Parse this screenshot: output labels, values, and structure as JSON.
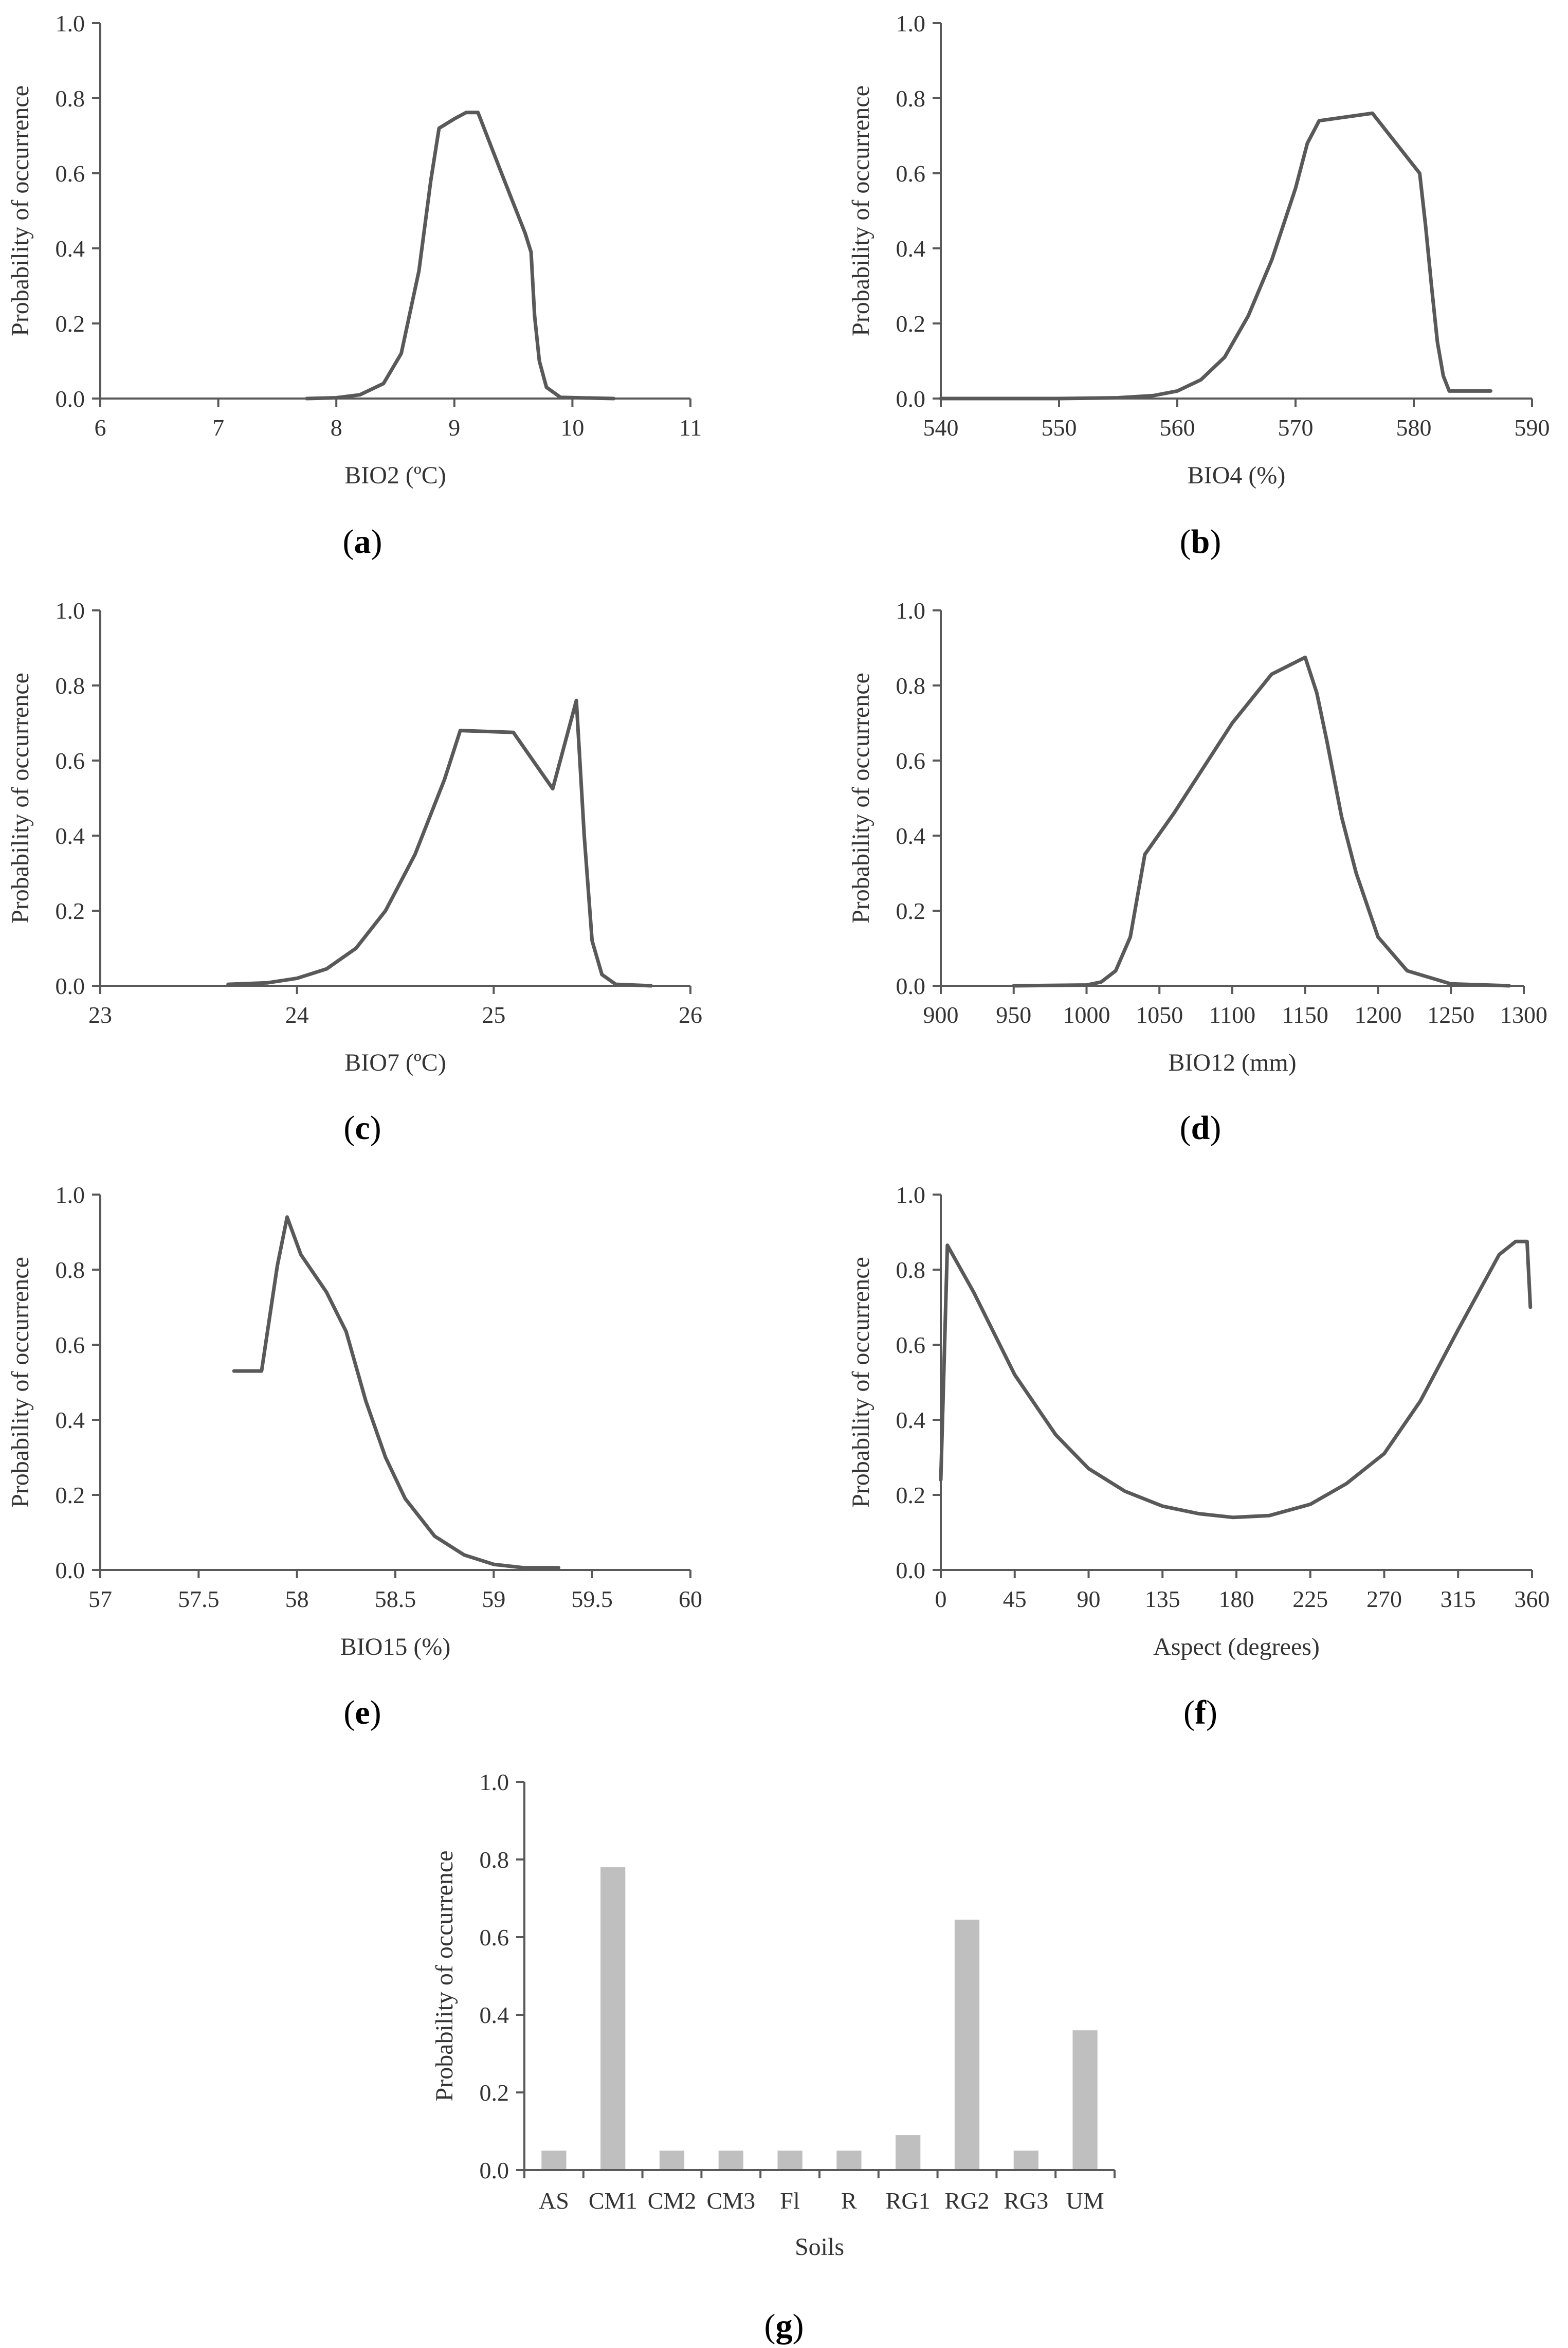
{
  "colors": {
    "axis": "#595959",
    "line": "#595959",
    "bar": "#bfbfbf",
    "text": "#333333"
  },
  "chart_data": [
    {
      "id": "a",
      "type": "line",
      "panel_label": "a",
      "xlabel": "BIO2 (ºC)",
      "ylabel": "Probability of occurrence",
      "xlim": [
        6,
        11
      ],
      "ylim": [
        0,
        1
      ],
      "x_ticks": [
        6,
        7,
        8,
        9,
        10,
        11
      ],
      "x_tick_labels": [
        "6",
        "7",
        "8",
        "9",
        "10",
        "11"
      ],
      "y_ticks": [
        0,
        0.2,
        0.4,
        0.6,
        0.8,
        1.0
      ],
      "y_tick_labels": [
        "0.0",
        "0.2",
        "0.4",
        "0.6",
        "0.8",
        "1.0"
      ],
      "x": [
        7.75,
        8.0,
        8.2,
        8.4,
        8.55,
        8.7,
        8.8,
        8.87,
        9.0,
        9.1,
        9.2,
        9.4,
        9.6,
        9.65,
        9.68,
        9.72,
        9.78,
        9.9,
        10.35
      ],
      "y": [
        0.0,
        0.002,
        0.01,
        0.04,
        0.12,
        0.34,
        0.58,
        0.72,
        0.745,
        0.762,
        0.762,
        0.6,
        0.44,
        0.39,
        0.22,
        0.1,
        0.03,
        0.003,
        0.0
      ]
    },
    {
      "id": "b",
      "type": "line",
      "panel_label": "b",
      "xlabel": "BIO4 (%)",
      "ylabel": "Probability of occurrence",
      "xlim": [
        540,
        590
      ],
      "ylim": [
        0,
        1
      ],
      "x_ticks": [
        540,
        550,
        560,
        570,
        580,
        590
      ],
      "x_tick_labels": [
        "540",
        "550",
        "560",
        "570",
        "580",
        "590"
      ],
      "y_ticks": [
        0,
        0.2,
        0.4,
        0.6,
        0.8,
        1.0
      ],
      "y_tick_labels": [
        "0.0",
        "0.2",
        "0.4",
        "0.6",
        "0.8",
        "1.0"
      ],
      "x": [
        540,
        550,
        555,
        558,
        560,
        562,
        564,
        566,
        568,
        570,
        571,
        572,
        576.5,
        580.5,
        581,
        581.5,
        582,
        582.5,
        583,
        586.5
      ],
      "y": [
        0.0,
        0.0,
        0.002,
        0.008,
        0.02,
        0.05,
        0.11,
        0.22,
        0.37,
        0.56,
        0.68,
        0.74,
        0.76,
        0.6,
        0.46,
        0.3,
        0.15,
        0.06,
        0.02,
        0.02
      ]
    },
    {
      "id": "c",
      "type": "line",
      "panel_label": "c",
      "xlabel": "BIO7 (ºC)",
      "ylabel": "Probability of occurrence",
      "xlim": [
        23,
        26
      ],
      "ylim": [
        0,
        1
      ],
      "x_ticks": [
        23,
        24,
        25,
        26
      ],
      "x_tick_labels": [
        "23",
        "24",
        "25",
        "26"
      ],
      "y_ticks": [
        0,
        0.2,
        0.4,
        0.6,
        0.8,
        1.0
      ],
      "y_tick_labels": [
        "0.0",
        "0.2",
        "0.4",
        "0.6",
        "0.8",
        "1.0"
      ],
      "x": [
        23.65,
        23.85,
        24.0,
        24.15,
        24.3,
        24.45,
        24.6,
        24.75,
        24.83,
        25.1,
        25.3,
        25.42,
        25.46,
        25.5,
        25.55,
        25.62,
        25.8
      ],
      "y": [
        0.004,
        0.008,
        0.02,
        0.045,
        0.1,
        0.2,
        0.35,
        0.55,
        0.68,
        0.675,
        0.525,
        0.76,
        0.4,
        0.12,
        0.03,
        0.004,
        0.0
      ]
    },
    {
      "id": "d",
      "type": "line",
      "panel_label": "d",
      "xlabel": "BIO12 (mm)",
      "ylabel": "Probability of occurrence",
      "xlim": [
        900,
        1300
      ],
      "ylim": [
        0,
        1
      ],
      "x_ticks": [
        900,
        950,
        1000,
        1050,
        1100,
        1150,
        1200,
        1250,
        1300
      ],
      "x_tick_labels": [
        "900",
        "950",
        "1000",
        "1050",
        "1100",
        "1150",
        "1200",
        "1250",
        "1300"
      ],
      "y_ticks": [
        0,
        0.2,
        0.4,
        0.6,
        0.8,
        1.0
      ],
      "y_tick_labels": [
        "0.0",
        "0.2",
        "0.4",
        "0.6",
        "0.8",
        "1.0"
      ],
      "x": [
        950,
        1000,
        1010,
        1020,
        1030,
        1040,
        1060,
        1080,
        1100,
        1127,
        1150,
        1158,
        1165,
        1175,
        1185,
        1200,
        1220,
        1250,
        1290
      ],
      "y": [
        0.0,
        0.002,
        0.01,
        0.04,
        0.13,
        0.35,
        0.46,
        0.58,
        0.7,
        0.83,
        0.875,
        0.78,
        0.65,
        0.45,
        0.3,
        0.13,
        0.04,
        0.005,
        0.0
      ]
    },
    {
      "id": "e",
      "type": "line",
      "panel_label": "e",
      "xlabel": "BIO15 (%)",
      "ylabel": "Probability of occurrence",
      "xlim": [
        57,
        60
      ],
      "ylim": [
        0,
        1
      ],
      "x_ticks": [
        57,
        57.5,
        58,
        58.5,
        59,
        59.5,
        60
      ],
      "x_tick_labels": [
        "57",
        "57.5",
        "58",
        "58.5",
        "59",
        "59.5",
        "60"
      ],
      "y_ticks": [
        0,
        0.2,
        0.4,
        0.6,
        0.8,
        1.0
      ],
      "y_tick_labels": [
        "0.0",
        "0.2",
        "0.4",
        "0.6",
        "0.8",
        "1.0"
      ],
      "x": [
        57.68,
        57.82,
        57.9,
        57.95,
        58.02,
        58.15,
        58.25,
        58.35,
        58.45,
        58.55,
        58.7,
        58.85,
        59.0,
        59.15,
        59.33
      ],
      "y": [
        0.53,
        0.53,
        0.81,
        0.94,
        0.84,
        0.74,
        0.635,
        0.45,
        0.3,
        0.19,
        0.09,
        0.04,
        0.015,
        0.006,
        0.006
      ]
    },
    {
      "id": "f",
      "type": "line",
      "panel_label": "f",
      "xlabel": "Aspect (degrees)",
      "ylabel": "Probability of occurrence",
      "xlim": [
        0,
        360
      ],
      "ylim": [
        0,
        1
      ],
      "x_ticks": [
        0,
        45,
        90,
        135,
        180,
        225,
        270,
        315,
        360
      ],
      "x_tick_labels": [
        "0",
        "45",
        "90",
        "135",
        "180",
        "225",
        "270",
        "315",
        "360"
      ],
      "y_ticks": [
        0,
        0.2,
        0.4,
        0.6,
        0.8,
        1.0
      ],
      "y_tick_labels": [
        "0.0",
        "0.2",
        "0.4",
        "0.6",
        "0.8",
        "1.0"
      ],
      "x": [
        0,
        4,
        20,
        45,
        70,
        90,
        112,
        135,
        157,
        178,
        200,
        225,
        247,
        270,
        292,
        315,
        340,
        350,
        357,
        359
      ],
      "y": [
        0.24,
        0.865,
        0.74,
        0.52,
        0.36,
        0.27,
        0.21,
        0.17,
        0.15,
        0.14,
        0.145,
        0.175,
        0.23,
        0.31,
        0.45,
        0.64,
        0.84,
        0.875,
        0.875,
        0.7
      ]
    },
    {
      "id": "g",
      "type": "bar",
      "panel_label": "g",
      "xlabel": "Soils",
      "ylabel": "Probability of occurrence",
      "ylim": [
        0,
        1
      ],
      "y_ticks": [
        0,
        0.2,
        0.4,
        0.6,
        0.8,
        1.0
      ],
      "y_tick_labels": [
        "0.0",
        "0.2",
        "0.4",
        "0.6",
        "0.8",
        "1.0"
      ],
      "categories": [
        "AS",
        "CM1",
        "CM2",
        "CM3",
        "Fl",
        "R",
        "RG1",
        "RG2",
        "RG3",
        "UM"
      ],
      "values": [
        0.05,
        0.78,
        0.05,
        0.05,
        0.05,
        0.05,
        0.09,
        0.645,
        0.05,
        0.36
      ]
    }
  ]
}
